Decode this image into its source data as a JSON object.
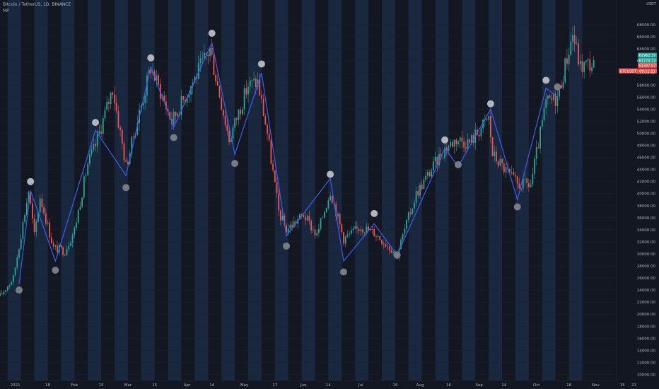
{
  "header": {
    "symbol_line": "Bitcoin / TetherUS, 1D, BINANCE",
    "indicator": "MP"
  },
  "axis_currency": "USDT",
  "colors": {
    "background": "#131722",
    "band": "#1b2a44",
    "up": "#26a69a",
    "down": "#ef5350",
    "zigzag": "#3d5ff0",
    "marker": "#9598a1",
    "axis_text": "#b2b5be"
  },
  "chart_data": {
    "type": "candlestick",
    "title": "Bitcoin / TetherUS, 1D, BINANCE",
    "ylim": [
      9000,
      70000
    ],
    "y_ticks": [
      10000,
      12000,
      14000,
      16000,
      18000,
      20000,
      22000,
      24000,
      26000,
      28000,
      30000,
      32000,
      34000,
      36000,
      38000,
      40000,
      42000,
      44000,
      46000,
      48000,
      50000,
      52000,
      54000,
      56000,
      58000,
      60000,
      62000,
      64000,
      66000,
      68000
    ],
    "y_tick_labels": [
      "10000.00",
      "12000.00",
      "14000.00",
      "16000.00",
      "18000.00",
      "20000.00",
      "22000.00",
      "24000.00",
      "26000.00",
      "28000.00",
      "30000.00",
      "32000.00",
      "34000.00",
      "36000.00",
      "38000.00",
      "40000.00",
      "42000.00",
      "44000.00",
      "46000.00",
      "48000.00",
      "50000.00",
      "52000.00",
      "54000.00",
      "56000.00",
      "58000.00",
      "60000.00",
      "62000.00",
      "64000.00",
      "66000.00",
      "68000.00"
    ],
    "x_labels": [
      {
        "label": "2021",
        "date": "2021-01-01"
      },
      {
        "label": "18",
        "date": "2021-01-18"
      },
      {
        "label": "Feb",
        "date": "2021-02-01"
      },
      {
        "label": "15",
        "date": "2021-02-15"
      },
      {
        "label": "Mar",
        "date": "2021-03-01"
      },
      {
        "label": "15",
        "date": "2021-03-15"
      },
      {
        "label": "Apr",
        "date": "2021-04-01"
      },
      {
        "label": "14",
        "date": "2021-04-14"
      },
      {
        "label": "May",
        "date": "2021-05-01"
      },
      {
        "label": "17",
        "date": "2021-05-17"
      },
      {
        "label": "Jun",
        "date": "2021-06-01"
      },
      {
        "label": "14",
        "date": "2021-06-14"
      },
      {
        "label": "Jul",
        "date": "2021-07-01"
      },
      {
        "label": "19",
        "date": "2021-07-19"
      },
      {
        "label": "Aug",
        "date": "2021-08-01"
      },
      {
        "label": "16",
        "date": "2021-08-16"
      },
      {
        "label": "Sep",
        "date": "2021-09-01"
      },
      {
        "label": "14",
        "date": "2021-09-14"
      },
      {
        "label": "Oct",
        "date": "2021-10-01"
      },
      {
        "label": "18",
        "date": "2021-10-18"
      },
      {
        "label": "Nov",
        "date": "2021-11-01"
      },
      {
        "label": "15",
        "date": "2021-11-15"
      },
      {
        "label": "21",
        "date": "2021-11-21"
      }
    ],
    "bands": [
      [
        "2020-12-28",
        "2021-01-04"
      ],
      [
        "2021-01-11",
        "2021-01-18"
      ],
      [
        "2021-01-25",
        "2021-02-01"
      ],
      [
        "2021-02-08",
        "2021-02-15"
      ],
      [
        "2021-02-22",
        "2021-03-01"
      ],
      [
        "2021-03-08",
        "2021-03-15"
      ],
      [
        "2021-03-22",
        "2021-03-29"
      ],
      [
        "2021-04-05",
        "2021-04-12"
      ],
      [
        "2021-04-19",
        "2021-04-26"
      ],
      [
        "2021-05-03",
        "2021-05-10"
      ],
      [
        "2021-05-17",
        "2021-05-24"
      ],
      [
        "2021-05-31",
        "2021-06-07"
      ],
      [
        "2021-06-14",
        "2021-06-21"
      ],
      [
        "2021-06-28",
        "2021-07-05"
      ],
      [
        "2021-07-12",
        "2021-07-19"
      ],
      [
        "2021-07-26",
        "2021-08-02"
      ],
      [
        "2021-08-09",
        "2021-08-16"
      ],
      [
        "2021-08-23",
        "2021-08-30"
      ],
      [
        "2021-09-06",
        "2021-09-13"
      ],
      [
        "2021-09-20",
        "2021-09-27"
      ],
      [
        "2021-10-04",
        "2021-10-11"
      ],
      [
        "2021-10-18",
        "2021-10-25"
      ]
    ],
    "price_path": [
      {
        "date": "2020-12-24",
        "price": 23000
      },
      {
        "date": "2020-12-31",
        "price": 26000
      },
      {
        "date": "2021-01-08",
        "price": 40500
      },
      {
        "date": "2021-01-11",
        "price": 33000
      },
      {
        "date": "2021-01-14",
        "price": 39500
      },
      {
        "date": "2021-01-21",
        "price": 31000
      },
      {
        "date": "2021-01-27",
        "price": 30500
      },
      {
        "date": "2021-02-01",
        "price": 34000
      },
      {
        "date": "2021-02-08",
        "price": 45000
      },
      {
        "date": "2021-02-12",
        "price": 48000
      },
      {
        "date": "2021-02-21",
        "price": 57500
      },
      {
        "date": "2021-02-28",
        "price": 44500
      },
      {
        "date": "2021-03-13",
        "price": 61000
      },
      {
        "date": "2021-03-24",
        "price": 52000
      },
      {
        "date": "2021-04-13",
        "price": 64000
      },
      {
        "date": "2021-04-23",
        "price": 49000
      },
      {
        "date": "2021-05-03",
        "price": 58000
      },
      {
        "date": "2021-05-08",
        "price": 58500
      },
      {
        "date": "2021-05-13",
        "price": 50000
      },
      {
        "date": "2021-05-19",
        "price": 37000
      },
      {
        "date": "2021-05-23",
        "price": 34000
      },
      {
        "date": "2021-06-01",
        "price": 36500
      },
      {
        "date": "2021-06-08",
        "price": 33000
      },
      {
        "date": "2021-06-15",
        "price": 40500
      },
      {
        "date": "2021-06-22",
        "price": 32500
      },
      {
        "date": "2021-07-01",
        "price": 34500
      },
      {
        "date": "2021-07-08",
        "price": 33500
      },
      {
        "date": "2021-07-20",
        "price": 30000
      },
      {
        "date": "2021-07-30",
        "price": 40000
      },
      {
        "date": "2021-08-14",
        "price": 47500
      },
      {
        "date": "2021-08-20",
        "price": 49000
      },
      {
        "date": "2021-08-27",
        "price": 48500
      },
      {
        "date": "2021-09-06",
        "price": 52500
      },
      {
        "date": "2021-09-08",
        "price": 46500
      },
      {
        "date": "2021-09-21",
        "price": 41500
      },
      {
        "date": "2021-09-28",
        "price": 41500
      },
      {
        "date": "2021-10-06",
        "price": 55000
      },
      {
        "date": "2021-10-12",
        "price": 56000
      },
      {
        "date": "2021-10-20",
        "price": 66500
      },
      {
        "date": "2021-10-24",
        "price": 61000
      },
      {
        "date": "2021-10-28",
        "price": 61500
      },
      {
        "date": "2021-10-31",
        "price": 61300
      }
    ],
    "zigzag": [
      {
        "date": "2021-01-03",
        "price": 25000
      },
      {
        "date": "2021-01-09",
        "price": 40500
      },
      {
        "date": "2021-01-22",
        "price": 28800
      },
      {
        "date": "2021-02-12",
        "price": 50500
      },
      {
        "date": "2021-02-28",
        "price": 43000
      },
      {
        "date": "2021-03-13",
        "price": 61000
      },
      {
        "date": "2021-03-25",
        "price": 51000
      },
      {
        "date": "2021-04-14",
        "price": 65000
      },
      {
        "date": "2021-04-26",
        "price": 46500
      },
      {
        "date": "2021-05-10",
        "price": 60000
      },
      {
        "date": "2021-05-23",
        "price": 33000
      },
      {
        "date": "2021-06-15",
        "price": 42500
      },
      {
        "date": "2021-06-22",
        "price": 28800
      },
      {
        "date": "2021-07-08",
        "price": 35000
      },
      {
        "date": "2021-07-20",
        "price": 29800
      },
      {
        "date": "2021-08-14",
        "price": 47500
      },
      {
        "date": "2021-08-21",
        "price": 44500
      },
      {
        "date": "2021-09-07",
        "price": 54000
      },
      {
        "date": "2021-09-21",
        "price": 39000
      },
      {
        "date": "2021-10-06",
        "price": 57500
      },
      {
        "date": "2021-10-12",
        "price": 56000
      }
    ],
    "markers": [
      {
        "date": "2021-01-03",
        "price": 24000,
        "side": "low"
      },
      {
        "date": "2021-01-09",
        "price": 42000,
        "side": "high"
      },
      {
        "date": "2021-01-22",
        "price": 27300,
        "side": "low"
      },
      {
        "date": "2021-02-12",
        "price": 51800,
        "side": "high"
      },
      {
        "date": "2021-02-28",
        "price": 41000,
        "side": "low"
      },
      {
        "date": "2021-03-13",
        "price": 62500,
        "side": "high"
      },
      {
        "date": "2021-03-25",
        "price": 49300,
        "side": "low"
      },
      {
        "date": "2021-04-14",
        "price": 66600,
        "side": "high"
      },
      {
        "date": "2021-04-26",
        "price": 45000,
        "side": "low"
      },
      {
        "date": "2021-05-10",
        "price": 61500,
        "side": "high"
      },
      {
        "date": "2021-05-23",
        "price": 31300,
        "side": "low"
      },
      {
        "date": "2021-06-15",
        "price": 43200,
        "side": "high"
      },
      {
        "date": "2021-06-22",
        "price": 27000,
        "side": "low"
      },
      {
        "date": "2021-07-08",
        "price": 36700,
        "side": "high"
      },
      {
        "date": "2021-07-20",
        "price": 29800,
        "side": "low"
      },
      {
        "date": "2021-08-14",
        "price": 48900,
        "side": "high"
      },
      {
        "date": "2021-08-21",
        "price": 44800,
        "side": "low"
      },
      {
        "date": "2021-09-07",
        "price": 54900,
        "side": "high"
      },
      {
        "date": "2021-09-21",
        "price": 37800,
        "side": "low"
      },
      {
        "date": "2021-10-06",
        "price": 58800,
        "side": "high"
      },
      {
        "date": "2021-10-12",
        "price": 57700,
        "side": "low"
      }
    ],
    "price_tags": [
      {
        "text": "61962.37",
        "price": 62950,
        "color": "#26a69a"
      },
      {
        "text": "61774.72",
        "price": 62100,
        "color": "#26a69a"
      },
      {
        "text": "61387.07",
        "price": 61280,
        "color": "#ef5350"
      },
      {
        "text": "BTCUSDT",
        "price": 60350,
        "color": "#ef5350",
        "left": true
      },
      {
        "text": "09:11:11",
        "price": 60350,
        "color": "#ef5350"
      }
    ]
  }
}
